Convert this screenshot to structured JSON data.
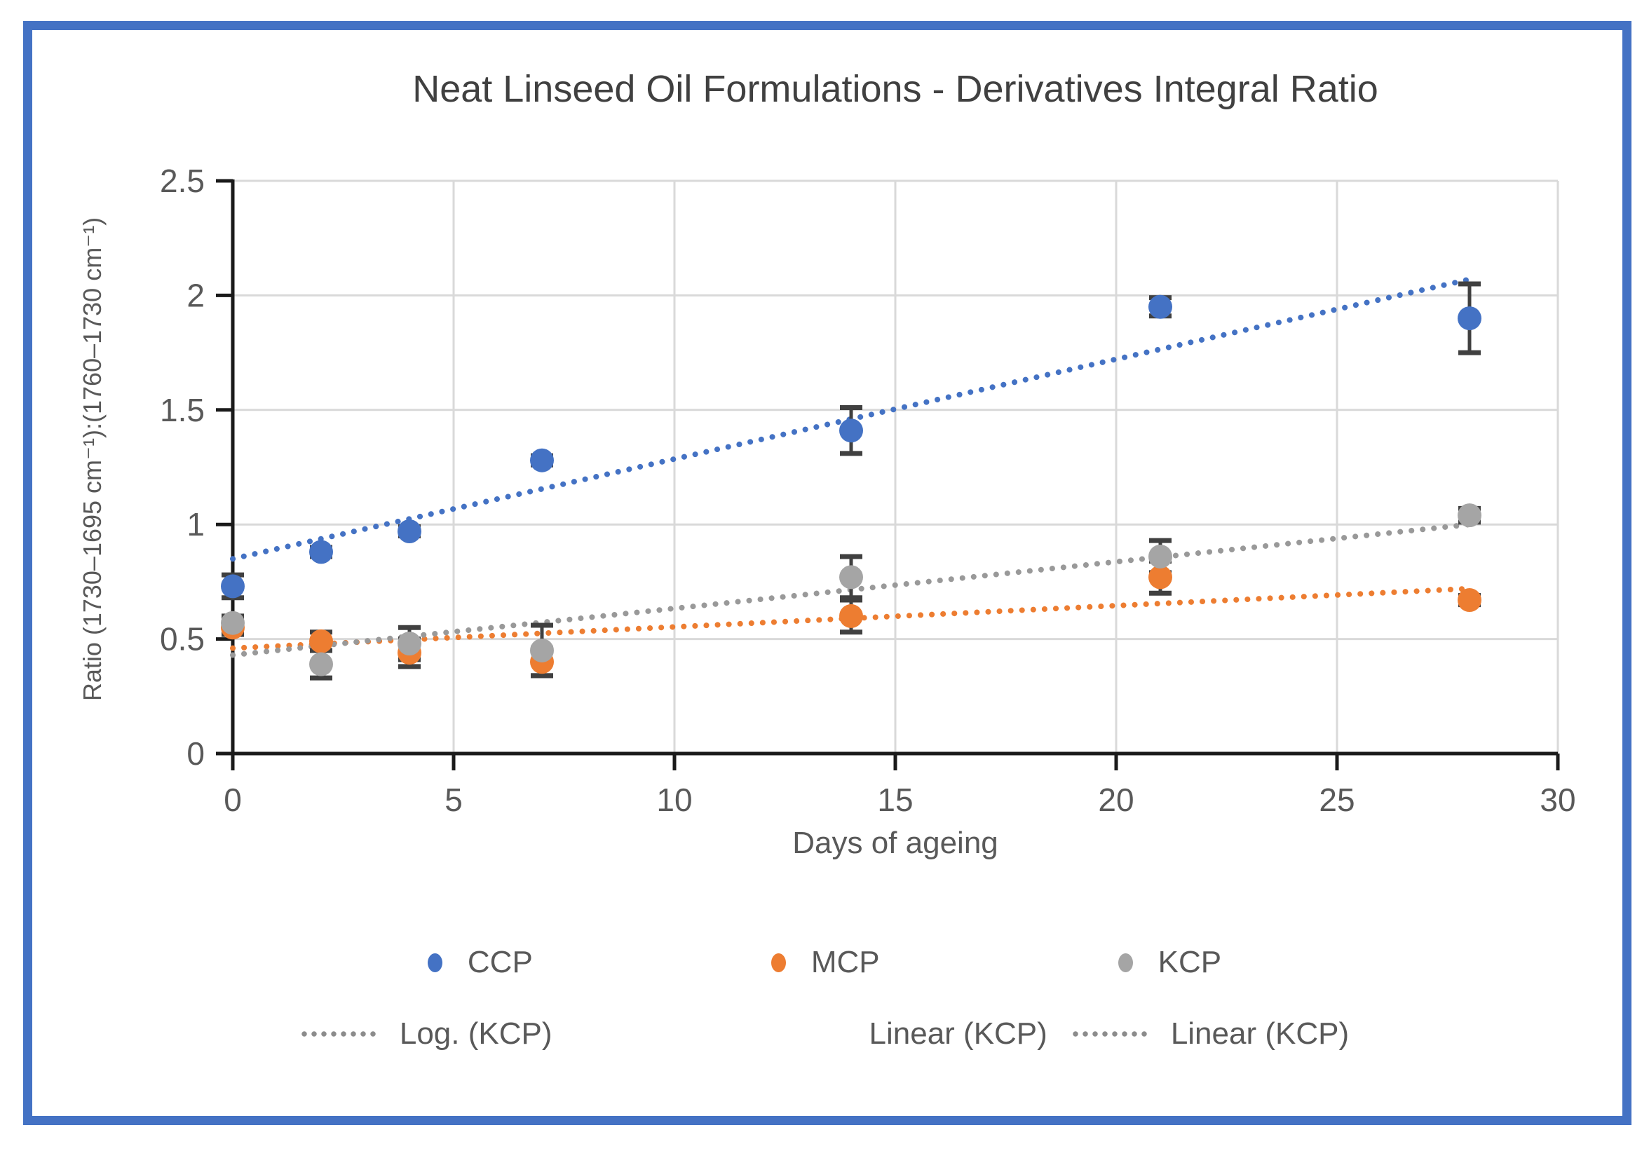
{
  "title": "Neat Linseed Oil Formulations - Derivatives Integral Ratio",
  "frame": {
    "border_color": "#4472C4"
  },
  "axes": {
    "x": {
      "label": "Days of ageing",
      "min": 0,
      "max": 30,
      "ticks": [
        0,
        5,
        10,
        15,
        20,
        25,
        30
      ],
      "tick_labels": [
        "0",
        "5",
        "10",
        "15",
        "20",
        "25",
        "30"
      ]
    },
    "y": {
      "label": "Ratio (1730–1695 cm⁻¹):(1760–1730 cm⁻¹)",
      "min": 0,
      "max": 2.5,
      "ticks": [
        0,
        0.5,
        1,
        1.5,
        2,
        2.5
      ],
      "tick_labels": [
        "0",
        "0.5",
        "1",
        "1.5",
        "2",
        "2.5"
      ]
    }
  },
  "chart_data": {
    "type": "scatter",
    "title": "Neat Linseed Oil Formulations - Derivatives Integral Ratio",
    "xlabel": "Days of ageing",
    "ylabel": "Ratio (1730–1695 cm⁻¹):(1760–1730 cm⁻¹)",
    "xlim": [
      0,
      30
    ],
    "ylim": [
      0,
      2.5
    ],
    "grid": true,
    "x": [
      0,
      2,
      4,
      7,
      14,
      21,
      28
    ],
    "series": [
      {
        "name": "CCP",
        "color": "#4472C4",
        "values": [
          0.73,
          0.88,
          0.97,
          1.28,
          1.41,
          1.95,
          1.9
        ],
        "errors": [
          0.05,
          0.02,
          0.02,
          0.02,
          0.1,
          0.04,
          0.15
        ],
        "trend": {
          "shape": "linear-dotted",
          "x0": 0,
          "y0": 0.85,
          "x1": 28,
          "y1": 2.07
        }
      },
      {
        "name": "MCP",
        "color": "#ED7D31",
        "values": [
          0.55,
          0.49,
          0.44,
          0.4,
          0.6,
          0.77,
          0.67
        ],
        "errors": [
          0.03,
          0.04,
          0.06,
          0.06,
          0.07,
          0.07,
          0.02
        ],
        "trend": {
          "shape": "linear-dotted",
          "x0": 0,
          "y0": 0.46,
          "x1": 28,
          "y1": 0.72
        }
      },
      {
        "name": "KCP",
        "color": "#A5A5A5",
        "trend_color": "#999999",
        "values": [
          0.57,
          0.39,
          0.48,
          0.45,
          0.77,
          0.86,
          1.04
        ],
        "errors": [
          0.03,
          0.06,
          0.07,
          0.11,
          0.09,
          0.07,
          0.03
        ],
        "trend": {
          "shape": "linear-dotted",
          "x0": 0,
          "y0": 0.43,
          "x1": 28,
          "y1": 1.0
        }
      }
    ],
    "legend_position": "bottom"
  },
  "legend": {
    "row1": [
      {
        "label": "CCP",
        "color": "#4472C4"
      },
      {
        "label": "MCP",
        "color": "#ED7D31"
      },
      {
        "label": "KCP",
        "color": "#A5A5A5"
      }
    ],
    "row2": [
      {
        "label": "Log. (KCP)",
        "sample": "dotted"
      },
      {
        "label": "Linear (KCP)",
        "sample": "hidden"
      },
      {
        "label": "Linear (KCP)",
        "sample": "dotted"
      }
    ]
  },
  "colors": {
    "gridline": "#D9D9D9",
    "axis": "#1a1a1a",
    "error_bar": "#404040",
    "tick_text": "#595959",
    "title_text": "#404040",
    "legend_sample": "#8c8c8c"
  }
}
